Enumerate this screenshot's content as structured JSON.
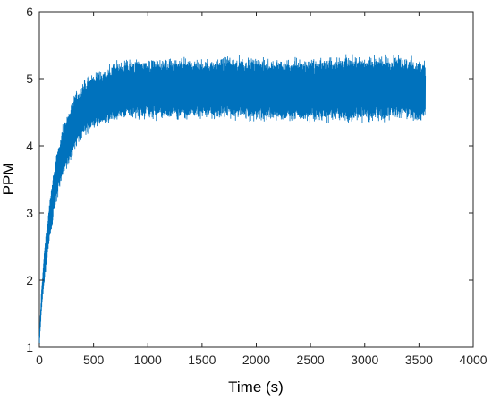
{
  "chart_data": {
    "type": "line",
    "title": "",
    "xlabel": "Time (s)",
    "ylabel": "PPM",
    "xlim": [
      0,
      4000
    ],
    "ylim": [
      1,
      6
    ],
    "xticks": [
      0,
      500,
      1000,
      1500,
      2000,
      2500,
      3000,
      3500,
      4000
    ],
    "yticks": [
      1,
      2,
      3,
      4,
      5,
      6
    ],
    "xtick_labels": [
      "0",
      "500",
      "1000",
      "1500",
      "2000",
      "2500",
      "3000",
      "3500",
      "4000"
    ],
    "ytick_labels": [
      "1",
      "2",
      "3",
      "4",
      "5",
      "6"
    ],
    "grid": false,
    "series_color": "#0072BD",
    "series": [
      {
        "description_points": "Upper and lower envelope of a noisy signal rising from ~1 ppm and saturating near 4.8 ppm",
        "x": [
          0,
          20,
          50,
          100,
          150,
          200,
          300,
          400,
          500,
          600,
          700,
          800,
          1000,
          1200,
          1500,
          1800,
          2000,
          2400,
          2800,
          3200,
          3560
        ],
        "upper": [
          1.2,
          1.9,
          2.6,
          3.3,
          3.85,
          4.25,
          4.75,
          5.0,
          5.15,
          5.2,
          5.3,
          5.35,
          5.35,
          5.35,
          5.35,
          5.4,
          5.35,
          5.35,
          5.4,
          5.4,
          5.35
        ],
        "lower": [
          1.0,
          1.5,
          2.0,
          2.6,
          3.05,
          3.4,
          3.8,
          4.05,
          4.2,
          4.25,
          4.3,
          4.35,
          4.35,
          4.35,
          4.35,
          4.35,
          4.3,
          4.3,
          4.3,
          4.3,
          4.3
        ]
      }
    ]
  }
}
